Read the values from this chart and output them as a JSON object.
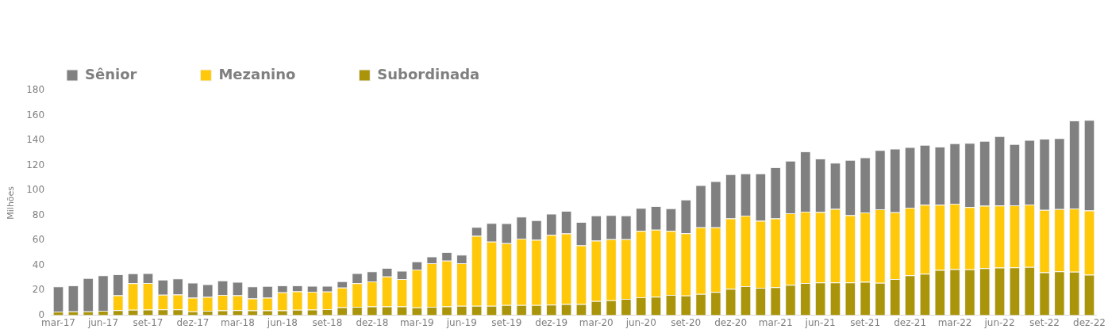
{
  "chart_data": {
    "type": "bar",
    "stacked": true,
    "ylabel": "Milhões",
    "legend": "top left",
    "grid": false,
    "categories": [
      "mar-17",
      null,
      null,
      "jun-17",
      null,
      null,
      "set-17",
      null,
      null,
      "dez-17",
      null,
      null,
      "mar-18",
      null,
      null,
      "jun-18",
      null,
      null,
      "set-18",
      null,
      null,
      "dez-18",
      null,
      null,
      "mar-19",
      null,
      null,
      "jun-19",
      null,
      null,
      "set-19",
      null,
      null,
      "dez-19",
      null,
      null,
      "mar-20",
      null,
      null,
      "jun-20",
      null,
      null,
      "set-20",
      null,
      null,
      "dez-20",
      null,
      null,
      "mar-21",
      null,
      null,
      "jun-21",
      null,
      null,
      "set-21",
      null,
      null,
      "dez-21",
      null,
      null,
      "mar-22",
      null,
      null,
      "jun-22",
      null,
      null,
      "set-22",
      null,
      null,
      "dez-22"
    ],
    "ylim": [
      0,
      180
    ],
    "yticks": [
      0,
      20,
      40,
      60,
      80,
      100,
      120,
      140,
      160,
      180
    ],
    "series": [
      {
        "name": "Subordinada",
        "color": "#aa950a",
        "values": [
          2.9,
          3,
          3,
          3.5,
          4,
          4.3,
          4.5,
          4.6,
          4.6,
          3,
          3.5,
          3.8,
          4.1,
          3.8,
          3.8,
          3.8,
          4.3,
          4.5,
          4.8,
          6.4,
          6.7,
          7,
          7.1,
          7.1,
          6.3,
          6.7,
          7.1,
          7.6,
          7.6,
          7.6,
          8.1,
          8.1,
          8.1,
          8.4,
          8.9,
          8.9,
          11.4,
          11.9,
          13,
          14.3,
          14.8,
          16.2,
          15.7,
          17.1,
          18.6,
          21.1,
          23.3,
          21.9,
          22.4,
          24.3,
          25.7,
          26.2,
          26.2,
          26.2,
          26.7,
          25.9,
          29,
          31.9,
          33.3,
          36.2,
          36.8,
          36.7,
          37.6,
          38.1,
          38.3,
          38.7,
          34.4,
          35.2,
          34.8,
          32.4
        ]
      },
      {
        "name": "Mezanino",
        "color": "#ffc90a",
        "values": [
          0,
          0,
          0,
          0,
          11.9,
          21.3,
          21.3,
          11.8,
          11.9,
          11.1,
          11.1,
          12.4,
          11.8,
          9.6,
          10.3,
          14.5,
          14.8,
          14.3,
          14.1,
          15.7,
          18.9,
          20,
          23.9,
          21.8,
          30.2,
          35,
          36.6,
          34,
          55.9,
          51.4,
          49.5,
          53.2,
          52.2,
          55.9,
          56.5,
          47,
          48.4,
          48.9,
          47.8,
          53.2,
          53.6,
          51.3,
          49.9,
          53.2,
          51.7,
          56.4,
          56.4,
          53.7,
          55.1,
          57.4,
          57.2,
          56.3,
          58.9,
          53.8,
          55.5,
          58.9,
          53.4,
          54.1,
          55.1,
          52.2,
          52.4,
          49.8,
          50,
          49.7,
          49.6,
          49.9,
          49.9,
          49.7,
          50.6,
          51.4
        ]
      },
      {
        "name": "Sênior",
        "color": "#808080",
        "values": [
          20.1,
          20.8,
          26.7,
          28.5,
          16.9,
          7.9,
          7.9,
          12.1,
          12.9,
          12,
          10.2,
          11.6,
          10.8,
          9.6,
          9.3,
          5.5,
          4.7,
          4.7,
          4.6,
          5.1,
          8.1,
          8.2,
          6.8,
          6.7,
          6.5,
          5.4,
          6.9,
          6.8,
          7.1,
          14.8,
          16.1,
          17.6,
          15.7,
          17,
          18.1,
          18.7,
          20,
          19.4,
          19,
          18.4,
          18.9,
          18.1,
          26.9,
          33.8,
          37,
          35.4,
          33.8,
          37.9,
          40.9,
          42,
          48.2,
          42.9,
          37,
          44.3,
          44.1,
          47.4,
          50.9,
          48.6,
          47.9,
          46.5,
          48.4,
          51.4,
          51.9,
          55.5,
          49.1,
          51.7,
          57,
          56.8,
          70.5,
          72.5
        ]
      }
    ]
  }
}
